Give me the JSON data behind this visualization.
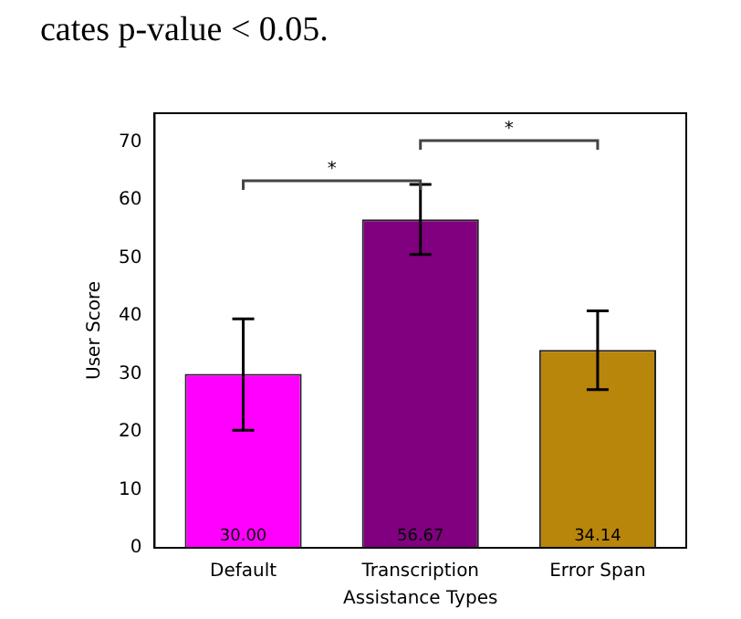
{
  "chart_data": {
    "type": "bar",
    "categories": [
      "Default",
      "Transcription",
      "Error Span"
    ],
    "values": [
      30.0,
      56.67,
      34.14
    ],
    "colors": [
      "#ff00ff",
      "#800080",
      "#b8860b"
    ],
    "errors": [
      [
        20.3,
        39.5
      ],
      [
        50.6,
        62.7
      ],
      [
        27.3,
        40.9
      ]
    ],
    "value_labels": [
      "30.00",
      "56.67",
      "34.14"
    ],
    "xlabel": "Assistance Types",
    "ylabel": "User Score",
    "ylim": [
      0,
      75
    ],
    "yticks": [
      0,
      10,
      20,
      30,
      40,
      50,
      60,
      70
    ],
    "grid": false,
    "legend": false,
    "annotations": [
      "*",
      "*",
      "cates p-value < 0.05."
    ]
  }
}
